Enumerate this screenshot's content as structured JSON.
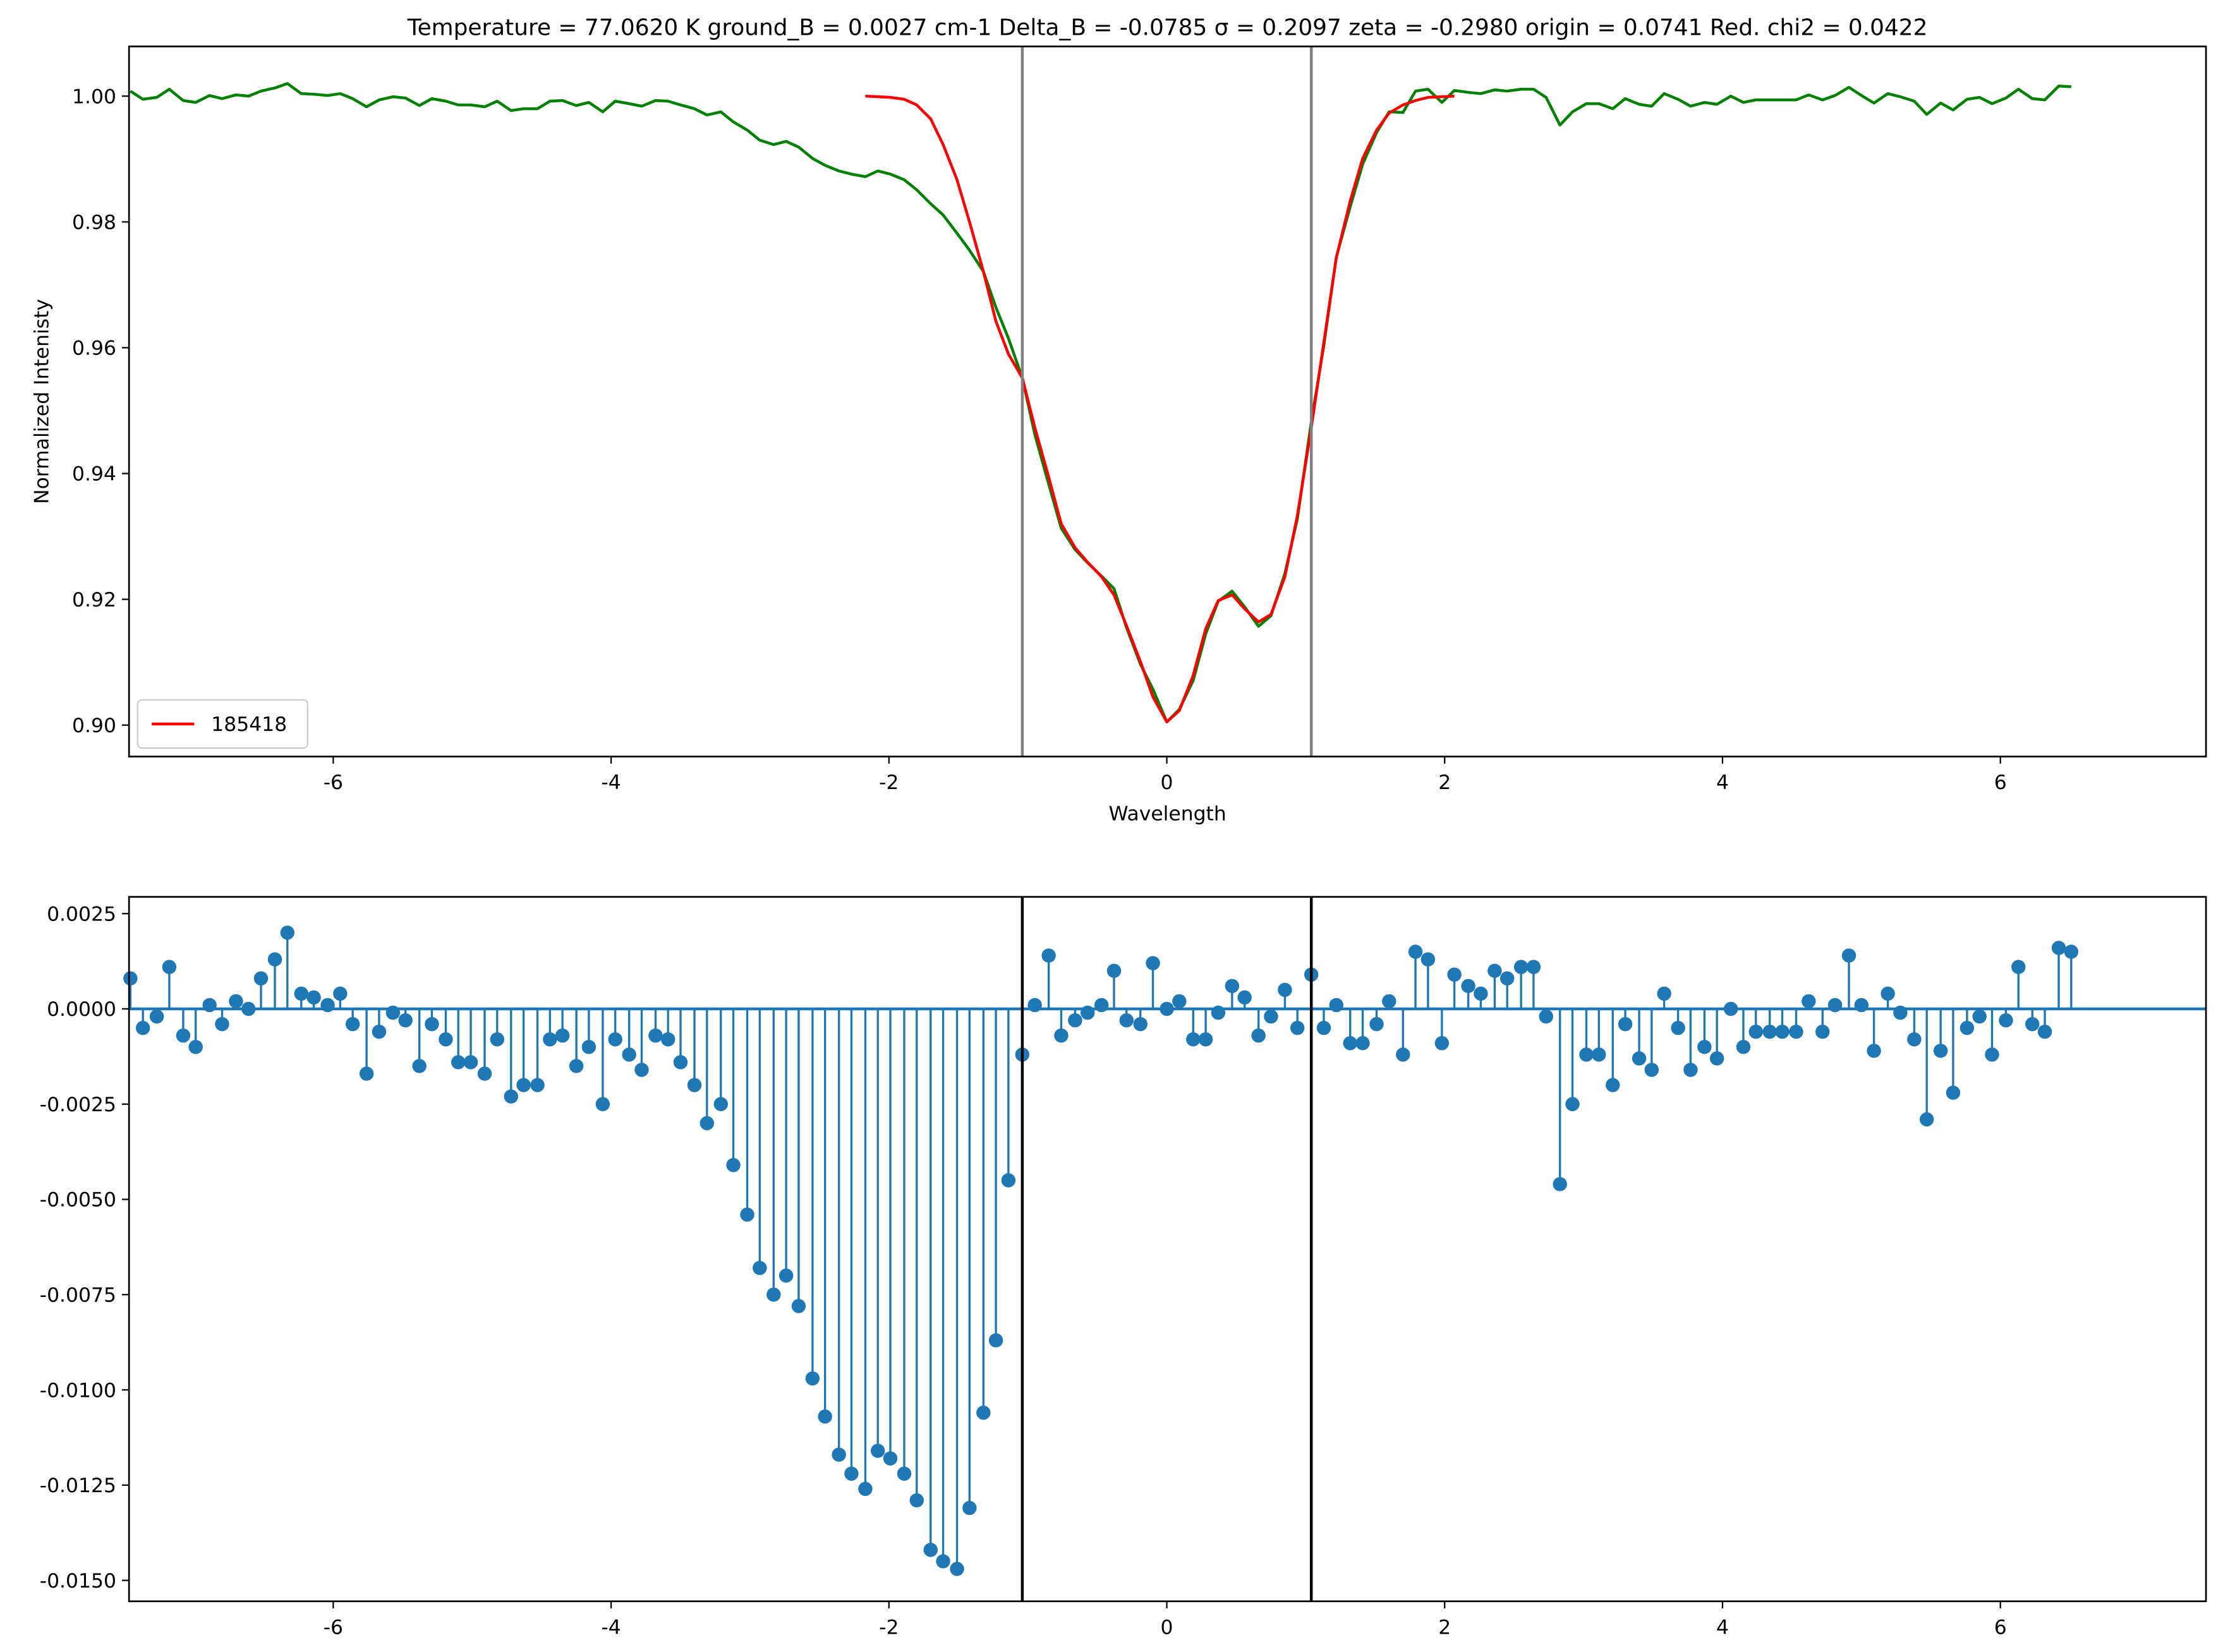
{
  "chart_data": [
    {
      "type": "line",
      "title": "Temperature = 77.0620  K  ground_B =  0.0027 cm-1  Delta_B = -0.0785    σ = 0.2097    zeta = -0.2980   origin = 0.0741   Red. chi2 = 0.0422",
      "xlabel": "Wavelength",
      "ylabel": "Normalized Intenisty",
      "x": [
        -7.46,
        -7.37,
        -7.27,
        -7.18,
        -7.08,
        -6.99,
        -6.89,
        -6.8,
        -6.7,
        -6.61,
        -6.52,
        -6.42,
        -6.33,
        -6.23,
        -6.14,
        -6.04,
        -5.95,
        -5.86,
        -5.76,
        -5.67,
        -5.57,
        -5.48,
        -5.38,
        -5.29,
        -5.19,
        -5.1,
        -5.01,
        -4.91,
        -4.82,
        -4.72,
        -4.63,
        -4.53,
        -4.44,
        -4.35,
        -4.25,
        -4.16,
        -4.06,
        -3.97,
        -3.87,
        -3.78,
        -3.68,
        -3.59,
        -3.5,
        -3.4,
        -3.31,
        -3.21,
        -3.12,
        -3.02,
        -2.93,
        -2.83,
        -2.74,
        -2.65,
        -2.55,
        -2.46,
        -2.36,
        -2.27,
        -2.17,
        -2.08,
        -1.99,
        -1.89,
        -1.8,
        -1.7,
        -1.61,
        -1.51,
        -1.42,
        -1.32,
        -1.23,
        -1.14,
        -1.04,
        -0.95,
        -0.85,
        -0.76,
        -0.66,
        -0.57,
        -0.47,
        -0.38,
        -0.29,
        -0.19,
        -0.1,
        0.0,
        0.09,
        0.19,
        0.28,
        0.37,
        0.47,
        0.56,
        0.66,
        0.75,
        0.85,
        0.94,
        1.04,
        1.13,
        1.22,
        1.32,
        1.41,
        1.51,
        1.6,
        1.7,
        1.79,
        1.88,
        1.98,
        2.07,
        2.17,
        2.26,
        2.36,
        2.45,
        2.55,
        2.64,
        2.73,
        2.83,
        2.92,
        3.02,
        3.11,
        3.21,
        3.3,
        3.4,
        3.49,
        3.58,
        3.68,
        3.77,
        3.87,
        3.96,
        4.06,
        4.15,
        4.24,
        4.34,
        4.43,
        4.53,
        4.62,
        4.72,
        4.81,
        4.91,
        5.0,
        5.09,
        5.19,
        5.28,
        5.38,
        5.47,
        5.57,
        5.66,
        5.76,
        5.85,
        5.94,
        6.04,
        6.13,
        6.23,
        6.32,
        6.42,
        6.51
      ],
      "series": [
        {
          "color": "#008000",
          "values": [
            1.0008,
            0.9995,
            0.9998,
            1.0011,
            0.9993,
            0.999,
            1.0001,
            0.9996,
            1.0002,
            1.0,
            1.0008,
            1.0013,
            1.002,
            1.0004,
            1.0003,
            1.0001,
            1.0004,
            0.9996,
            0.9983,
            0.9994,
            0.9999,
            0.9997,
            0.9985,
            0.9996,
            0.9992,
            0.9986,
            0.9986,
            0.9983,
            0.9992,
            0.9977,
            0.998,
            0.998,
            0.9992,
            0.9993,
            0.9985,
            0.999,
            0.9975,
            0.9992,
            0.9988,
            0.9984,
            0.9993,
            0.9992,
            0.9986,
            0.998,
            0.997,
            0.9975,
            0.9959,
            0.9946,
            0.993,
            0.9923,
            0.9928,
            0.9919,
            0.9901,
            0.989,
            0.9881,
            0.9876,
            0.9872,
            0.9881,
            0.9876,
            0.9867,
            0.9851,
            0.9829,
            0.9811,
            0.9782,
            0.9755,
            0.9721,
            0.9664,
            0.9615,
            0.9552,
            0.9462,
            0.9383,
            0.9313,
            0.9279,
            0.9258,
            0.9237,
            0.9217,
            0.9155,
            0.9097,
            0.9057,
            0.9005,
            0.9025,
            0.9071,
            0.9145,
            0.9197,
            0.9213,
            0.9188,
            0.9157,
            0.9174,
            0.9241,
            0.9328,
            0.9482,
            0.9603,
            0.9744,
            0.9824,
            0.9892,
            0.9942,
            0.9975,
            0.9974,
            1.0008,
            1.0011,
            0.999,
            1.0009,
            1.0006,
            1.0004,
            1.001,
            1.0008,
            1.0011,
            1.0011,
            0.9998,
            0.9954,
            0.9975,
            0.9988,
            0.9988,
            0.998,
            0.9996,
            0.9987,
            0.9984,
            1.0004,
            0.9995,
            0.9984,
            0.999,
            0.9987,
            1.0,
            0.999,
            0.9994,
            0.9994,
            0.9994,
            0.9994,
            1.0002,
            0.9994,
            1.0001,
            1.0014,
            1.0001,
            0.9989,
            1.0004,
            0.9999,
            0.9992,
            0.9971,
            0.9989,
            0.9978,
            0.9995,
            0.9998,
            0.9988,
            0.9997,
            1.0011,
            0.9996,
            0.9994,
            1.0016,
            1.0015
          ]
        },
        {
          "name": "185418",
          "color": "#ff0000",
          "values": [
            null,
            null,
            null,
            null,
            null,
            null,
            null,
            null,
            null,
            null,
            null,
            null,
            null,
            null,
            null,
            null,
            null,
            null,
            null,
            null,
            null,
            null,
            null,
            null,
            null,
            null,
            null,
            null,
            null,
            null,
            null,
            null,
            null,
            null,
            null,
            null,
            null,
            null,
            null,
            null,
            null,
            null,
            null,
            null,
            null,
            null,
            null,
            null,
            null,
            null,
            null,
            null,
            null,
            null,
            null,
            null,
            1.0,
            0.9999,
            0.9998,
            0.9995,
            0.9986,
            0.9964,
            0.9923,
            0.9867,
            0.98,
            0.9721,
            0.9642,
            0.959,
            0.9552,
            0.9473,
            0.9394,
            0.932,
            0.9282,
            0.9259,
            0.9236,
            0.9207,
            0.9158,
            0.9101,
            0.9045,
            0.9005,
            0.9023,
            0.9079,
            0.9153,
            0.9198,
            0.9207,
            0.9185,
            0.9164,
            0.9176,
            0.9236,
            0.9333,
            0.9473,
            0.9608,
            0.9743,
            0.9833,
            0.9901,
            0.9946,
            0.9973,
            0.9986,
            0.9993,
            0.9998,
            0.9999,
            1.0,
            null,
            null,
            null,
            null,
            null,
            null,
            null,
            null,
            null,
            null,
            null,
            null,
            null,
            null,
            null,
            null,
            null,
            null,
            null,
            null,
            null,
            null,
            null,
            null,
            null,
            null,
            null,
            null,
            null,
            null,
            null,
            null,
            null,
            null,
            null,
            null,
            null,
            null,
            null,
            null,
            null,
            null,
            null,
            null,
            null,
            null,
            null
          ]
        }
      ],
      "vlines": [
        -1.04,
        1.04
      ],
      "vline_color": "#808080",
      "xlim": [
        -7.47,
        7.48
      ],
      "xticks": [
        -6,
        -4,
        -2,
        0,
        2,
        4,
        6
      ],
      "ylim": [
        0.895,
        1.0079
      ],
      "yticks": [
        {
          "value": 0.9,
          "label": "0.90"
        },
        0.92,
        0.94,
        0.96,
        0.98,
        {
          "value": 1,
          "label": "1.00"
        }
      ],
      "legend": "lower left",
      "grid": false
    },
    {
      "type": "stem",
      "color": "#1f77b4",
      "x": [
        -7.46,
        -7.37,
        -7.27,
        -7.18,
        -7.08,
        -6.99,
        -6.89,
        -6.8,
        -6.7,
        -6.61,
        -6.52,
        -6.42,
        -6.33,
        -6.23,
        -6.14,
        -6.04,
        -5.95,
        -5.86,
        -5.76,
        -5.67,
        -5.57,
        -5.48,
        -5.38,
        -5.29,
        -5.19,
        -5.1,
        -5.01,
        -4.91,
        -4.82,
        -4.72,
        -4.63,
        -4.53,
        -4.44,
        -4.35,
        -4.25,
        -4.16,
        -4.06,
        -3.97,
        -3.87,
        -3.78,
        -3.68,
        -3.59,
        -3.5,
        -3.4,
        -3.31,
        -3.21,
        -3.12,
        -3.02,
        -2.93,
        -2.83,
        -2.74,
        -2.65,
        -2.55,
        -2.46,
        -2.36,
        -2.27,
        -2.17,
        -2.08,
        -1.99,
        -1.89,
        -1.8,
        -1.7,
        -1.61,
        -1.51,
        -1.42,
        -1.32,
        -1.23,
        -1.14,
        -1.04,
        -0.95,
        -0.85,
        -0.76,
        -0.66,
        -0.57,
        -0.47,
        -0.38,
        -0.29,
        -0.19,
        -0.1,
        0.0,
        0.09,
        0.19,
        0.28,
        0.37,
        0.47,
        0.56,
        0.66,
        0.75,
        0.85,
        0.94,
        1.04,
        1.13,
        1.22,
        1.32,
        1.41,
        1.51,
        1.6,
        1.7,
        1.79,
        1.88,
        1.98,
        2.07,
        2.17,
        2.26,
        2.36,
        2.45,
        2.55,
        2.64,
        2.73,
        2.83,
        2.92,
        3.02,
        3.11,
        3.21,
        3.3,
        3.4,
        3.49,
        3.58,
        3.68,
        3.77,
        3.87,
        3.96,
        4.06,
        4.15,
        4.24,
        4.34,
        4.43,
        4.53,
        4.62,
        4.72,
        4.81,
        4.91,
        5.0,
        5.09,
        5.19,
        5.28,
        5.38,
        5.47,
        5.57,
        5.66,
        5.76,
        5.85,
        5.94,
        6.04,
        6.13,
        6.23,
        6.32,
        6.42,
        6.51
      ],
      "values": [
        0.0008,
        -0.0005,
        -0.0002,
        0.0011,
        -0.0007,
        -0.001,
        0.0001,
        -0.0004,
        0.0002,
        0.0,
        0.0008,
        0.0013,
        0.002,
        0.0004,
        0.0003,
        0.0001,
        0.0004,
        -0.0004,
        -0.0017,
        -0.0006,
        -0.0001,
        -0.0003,
        -0.0015,
        -0.0004,
        -0.0008,
        -0.0014,
        -0.0014,
        -0.0017,
        -0.0008,
        -0.0023,
        -0.002,
        -0.002,
        -0.0008,
        -0.0007,
        -0.0015,
        -0.001,
        -0.0025,
        -0.0008,
        -0.0012,
        -0.0016,
        -0.0007,
        -0.0008,
        -0.0014,
        -0.002,
        -0.003,
        -0.0025,
        -0.0041,
        -0.0054,
        -0.0068,
        -0.0075,
        -0.007,
        -0.0078,
        -0.0097,
        -0.0107,
        -0.0117,
        -0.0122,
        -0.0126,
        -0.0116,
        -0.0118,
        -0.0122,
        -0.0129,
        -0.0142,
        -0.0145,
        -0.0147,
        -0.0131,
        -0.0106,
        -0.0087,
        -0.0045,
        -0.0012,
        0.0001,
        0.0014,
        -0.0007,
        -0.0003,
        -0.0001,
        0.0001,
        0.001,
        -0.0003,
        -0.0004,
        0.0012,
        0.0,
        0.0002,
        -0.0008,
        -0.0008,
        -0.0001,
        0.0006,
        0.0003,
        -0.0007,
        -0.0002,
        0.0005,
        -0.0005,
        0.0009,
        -0.0005,
        0.0001,
        -0.0009,
        -0.0009,
        -0.0004,
        0.0002,
        -0.0012,
        0.0015,
        0.0013,
        -0.0009,
        0.0009,
        0.0006,
        0.0004,
        0.001,
        0.0008,
        0.0011,
        0.0011,
        -0.0002,
        -0.0046,
        -0.0025,
        -0.0012,
        -0.0012,
        -0.002,
        -0.0004,
        -0.0013,
        -0.0016,
        0.0004,
        -0.0005,
        -0.0016,
        -0.001,
        -0.0013,
        0.0,
        -0.001,
        -0.0006,
        -0.0006,
        -0.0006,
        -0.0006,
        0.0002,
        -0.0006,
        0.0001,
        0.0014,
        0.0001,
        -0.0011,
        0.0004,
        -0.0001,
        -0.0008,
        -0.0029,
        -0.0011,
        -0.0022,
        -0.0005,
        -0.0002,
        -0.0012,
        -0.0003,
        0.0011,
        -0.0004,
        -0.0006,
        0.0016,
        0.0015
      ],
      "vlines": [
        -1.04,
        1.04
      ],
      "vline_color": "#000000",
      "xlim": [
        -7.47,
        7.48
      ],
      "xticks": [
        -6,
        -4,
        -2,
        0,
        2,
        4,
        6
      ],
      "ylim": [
        -0.01555,
        0.00294
      ],
      "yticks": [
        0.0025,
        {
          "value": 0,
          "label": "0.0000"
        },
        -0.0025,
        {
          "value": -0.005,
          "label": "-0.0050"
        },
        -0.0075,
        {
          "value": -0.01,
          "label": "-0.0100"
        },
        -0.0125,
        {
          "value": -0.015,
          "label": "-0.0150"
        }
      ],
      "grid": false
    }
  ]
}
